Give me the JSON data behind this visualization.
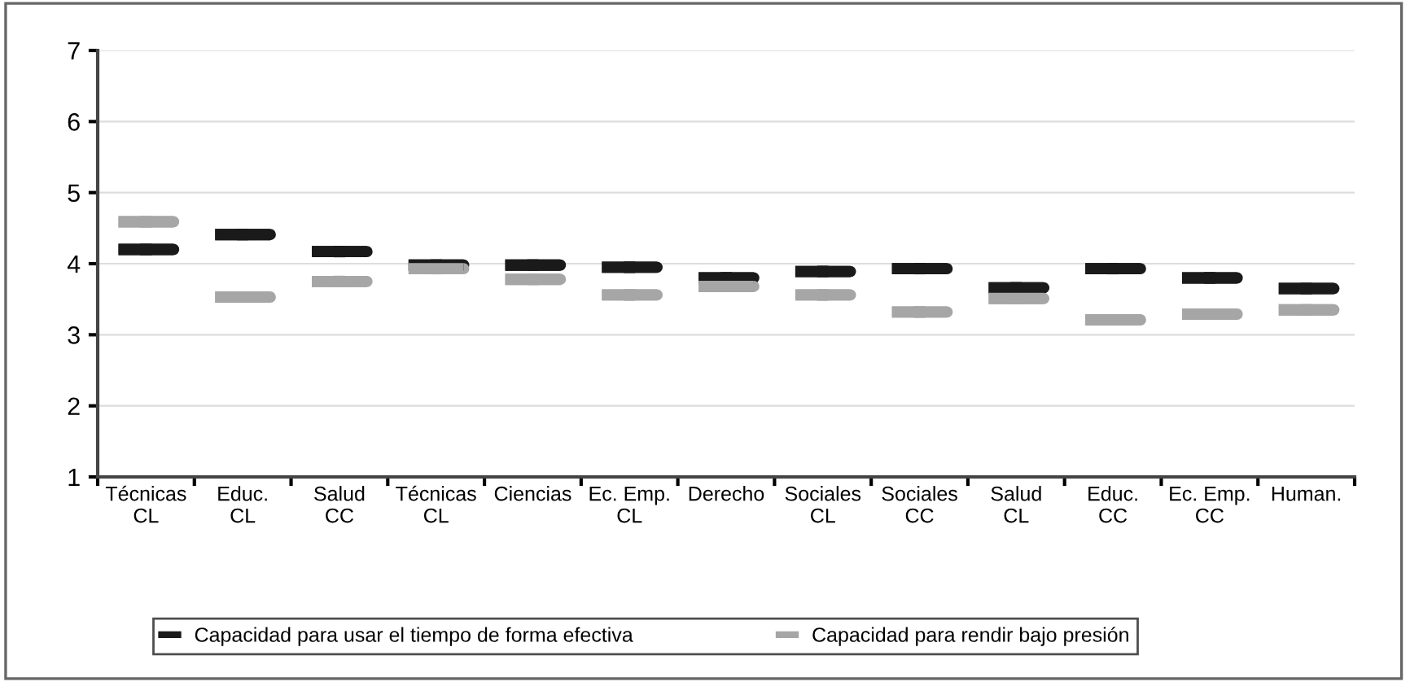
{
  "chart_data": {
    "type": "box",
    "categories": [
      "Técnicas\nCL",
      "Educ.\nCL",
      "Salud\nCC",
      "Técnicas\nCL",
      "Ciencias",
      "Ec. Emp.\nCL",
      "Derecho",
      "Sociales\nCL",
      "Sociales\nCC",
      "Salud\nCL",
      "Educ.\nCC",
      "Ec. Emp.\nCC",
      "Human."
    ],
    "series": [
      {
        "name": "Capacidad para usar el tiempo de forma efectiva",
        "color": "#1a1a1a",
        "boxes": [
          {
            "low": 4.2,
            "q1": 4.2,
            "median": 4.2,
            "q3": 4.2,
            "high": 4.2
          },
          {
            "low": 4.41,
            "q1": 4.41,
            "median": 4.41,
            "q3": 4.41,
            "high": 4.41
          },
          {
            "low": 4.17,
            "q1": 4.17,
            "median": 4.17,
            "q3": 4.17,
            "high": 4.17
          },
          {
            "low": 3.98,
            "q1": 3.98,
            "median": 3.98,
            "q3": 3.98,
            "high": 3.98
          },
          {
            "low": 3.98,
            "q1": 3.98,
            "median": 3.98,
            "q3": 3.98,
            "high": 3.98
          },
          {
            "low": 3.95,
            "q1": 3.95,
            "median": 3.95,
            "q3": 3.95,
            "high": 3.95
          },
          {
            "low": 3.8,
            "q1": 3.8,
            "median": 3.8,
            "q3": 3.8,
            "high": 3.8
          },
          {
            "low": 3.89,
            "q1": 3.89,
            "median": 3.89,
            "q3": 3.89,
            "high": 3.89
          },
          {
            "low": 3.93,
            "q1": 3.93,
            "median": 3.93,
            "q3": 3.93,
            "high": 3.93
          },
          {
            "low": 3.66,
            "q1": 3.66,
            "median": 3.66,
            "q3": 3.66,
            "high": 3.66
          },
          {
            "low": 3.93,
            "q1": 3.93,
            "median": 3.93,
            "q3": 3.93,
            "high": 3.93
          },
          {
            "low": 3.8,
            "q1": 3.8,
            "median": 3.8,
            "q3": 3.8,
            "high": 3.8
          },
          {
            "low": 3.65,
            "q1": 3.65,
            "median": 3.65,
            "q3": 3.65,
            "high": 3.65
          }
        ]
      },
      {
        "name": "Capacidad para rendir bajo presión",
        "color": "#a6a6a6",
        "boxes": [
          {
            "low": 4.59,
            "q1": 4.59,
            "median": 4.59,
            "q3": 4.59,
            "high": 4.59
          },
          {
            "low": 3.53,
            "q1": 3.53,
            "median": 3.53,
            "q3": 3.53,
            "high": 3.53
          },
          {
            "low": 3.75,
            "q1": 3.75,
            "median": 3.75,
            "q3": 3.75,
            "high": 3.75
          },
          {
            "low": 3.93,
            "q1": 3.93,
            "median": 3.93,
            "q3": 3.93,
            "high": 3.93
          },
          {
            "low": 3.78,
            "q1": 3.78,
            "median": 3.78,
            "q3": 3.78,
            "high": 3.78
          },
          {
            "low": 3.56,
            "q1": 3.56,
            "median": 3.56,
            "q3": 3.56,
            "high": 3.56
          },
          {
            "low": 3.68,
            "q1": 3.68,
            "median": 3.68,
            "q3": 3.68,
            "high": 3.68
          },
          {
            "low": 3.56,
            "q1": 3.56,
            "median": 3.56,
            "q3": 3.56,
            "high": 3.56
          },
          {
            "low": 3.32,
            "q1": 3.32,
            "median": 3.32,
            "q3": 3.32,
            "high": 3.32
          },
          {
            "low": 3.51,
            "q1": 3.51,
            "median": 3.51,
            "q3": 3.51,
            "high": 3.51
          },
          {
            "low": 3.21,
            "q1": 3.21,
            "median": 3.21,
            "q3": 3.21,
            "high": 3.21
          },
          {
            "low": 3.29,
            "q1": 3.29,
            "median": 3.29,
            "q3": 3.29,
            "high": 3.29
          },
          {
            "low": 3.35,
            "q1": 3.35,
            "median": 3.35,
            "q3": 3.35,
            "high": 3.35
          }
        ]
      }
    ],
    "ylim": [
      1,
      7
    ],
    "yticks": [
      1,
      2,
      3,
      4,
      5,
      6,
      7
    ],
    "grid": "y",
    "legend": "bottom"
  }
}
